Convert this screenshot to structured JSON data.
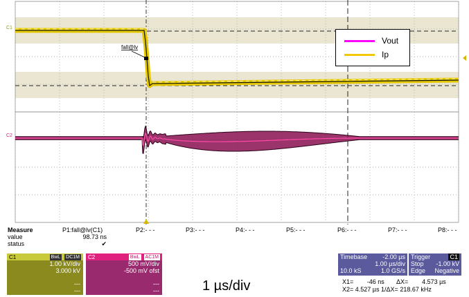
{
  "scope": {
    "channel_markers": {
      "c1": "C1",
      "c2": "C2"
    },
    "cursor_markers": [
      "P2:- - -",
      "P3:- - -",
      "P4:- - -",
      "P5:- - -",
      "P6:- - -",
      "P7:- - -",
      "P8:- - -"
    ],
    "fall_label": "fall@lv",
    "colors": {
      "c1": "#e6c800",
      "c2": "#d4006a",
      "grid": "#b0b0b0",
      "band": "#e9e5cf"
    }
  },
  "legend": {
    "items": [
      {
        "label": "Vout",
        "color": "#ff00ff"
      },
      {
        "label": "Ip",
        "color": "#f0c800"
      }
    ]
  },
  "measure": {
    "title": "Measure",
    "row_labels": [
      "value",
      "status"
    ],
    "param_name": "P1:fall@lv(C1)",
    "param_value": "98.73 ns",
    "status_icon": "✔"
  },
  "channels": [
    {
      "id": "C1",
      "badge1": "BwL",
      "badge2": "DC1M",
      "scale": "1.00 kV/div",
      "offset": "3.000 kV",
      "bottom1": "---",
      "bottom2": "---",
      "color": "#8a8a1e",
      "headcolor": "#c9c93c"
    },
    {
      "id": "C2",
      "badge1": "BwL",
      "badge2": "AC1M",
      "scale": "500 mV/div",
      "offset": "-500 mV ofst",
      "bottom1": "---",
      "bottom2": "---",
      "color": "#9a2a6e",
      "headcolor": "#e0207e"
    }
  ],
  "timebase": {
    "label": "Timebase",
    "delay": "-2.00 µs",
    "per_div": "1.00 µs/div",
    "samples": "10.0 kS",
    "rate": "1.0 GS/s"
  },
  "trigger": {
    "label": "Trigger",
    "channel": "C1",
    "mode": "Stop",
    "level": "-1.00 kV",
    "type": "Edge",
    "slope": "Negative"
  },
  "cursors": {
    "x1_label": "X1=",
    "x1": "-46 ns",
    "dx_label": "ΔX=",
    "dx": "4.573 µs",
    "x2_label": "X2=",
    "x2": "4.527 µs",
    "inv_label": "1/ΔX=",
    "inv": "218.67 kHz"
  },
  "caption": "1 µs/div"
}
